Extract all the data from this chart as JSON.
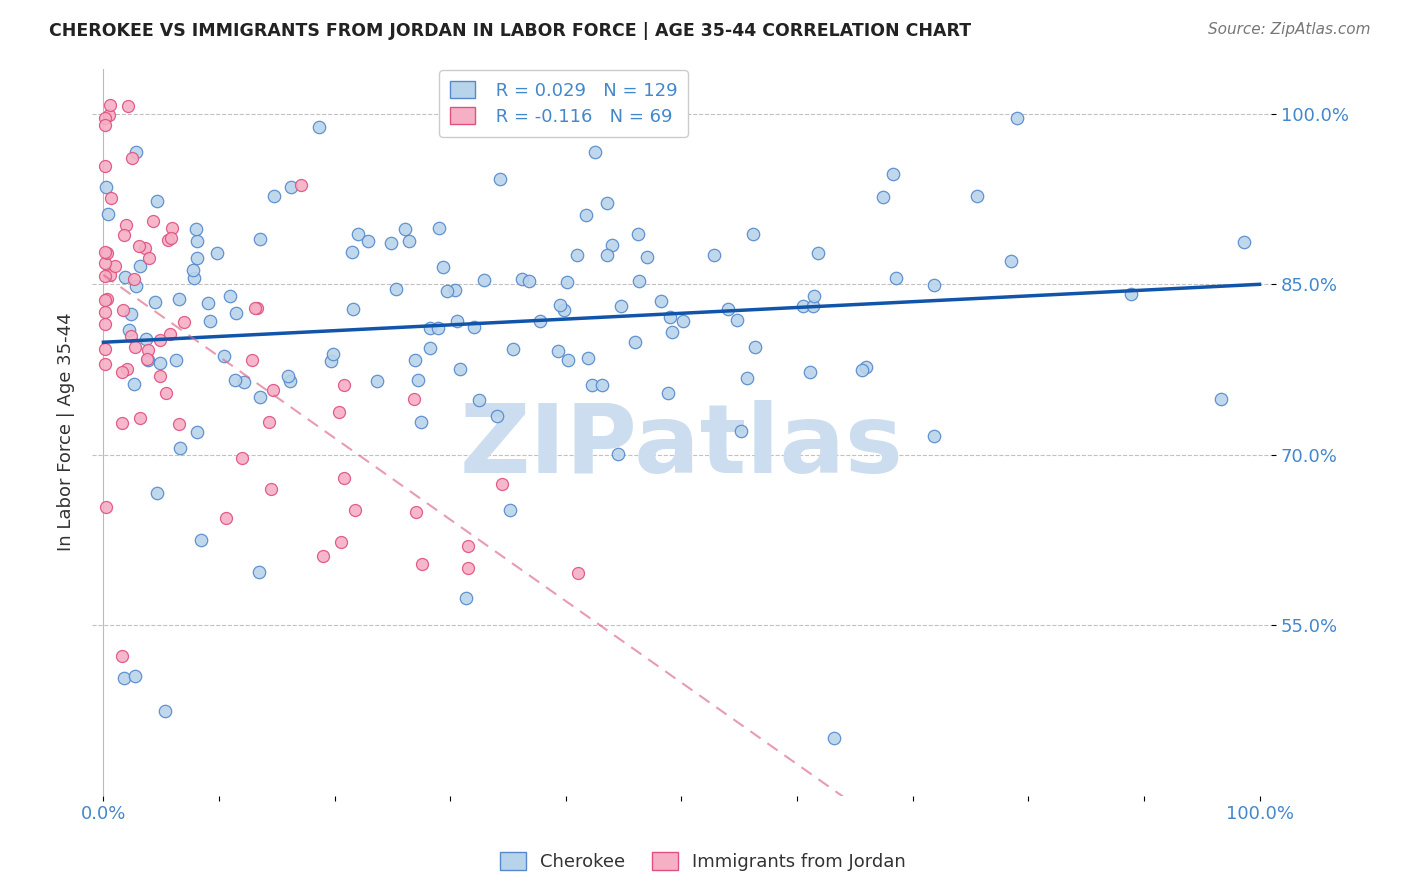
{
  "title": "CHEROKEE VS IMMIGRANTS FROM JORDAN IN LABOR FORCE | AGE 35-44 CORRELATION CHART",
  "source": "Source: ZipAtlas.com",
  "ylabel": "In Labor Force | Age 35-44",
  "xlabel": "",
  "xlim": [
    -0.01,
    1.01
  ],
  "ylim": [
    0.4,
    1.04
  ],
  "yticks": [
    0.55,
    0.7,
    0.85,
    1.0
  ],
  "ytick_labels": [
    "55.0%",
    "70.0%",
    "85.0%",
    "100.0%"
  ],
  "xtick_labels": [
    "0.0%",
    "",
    "",
    "",
    "",
    "",
    "",
    "",
    "",
    "",
    "100.0%"
  ],
  "cherokee_color": "#b8d4ea",
  "jordan_color": "#f5b0c5",
  "cherokee_edge_color": "#5588cc",
  "jordan_edge_color": "#e05080",
  "trend_cherokee_color": "#1155aa",
  "trend_jordan_color": "#dd6688",
  "R_cherokee": 0.029,
  "N_cherokee": 129,
  "R_jordan": -0.116,
  "N_jordan": 69,
  "legend_cherokee": "Cherokee",
  "legend_jordan": "Immigrants from Jordan",
  "watermark": "ZIPatlas",
  "watermark_color": "#ccddf0",
  "background_color": "#ffffff",
  "grid_color": "#bbbbbb",
  "title_color": "#222222",
  "axis_color": "#4488cc"
}
